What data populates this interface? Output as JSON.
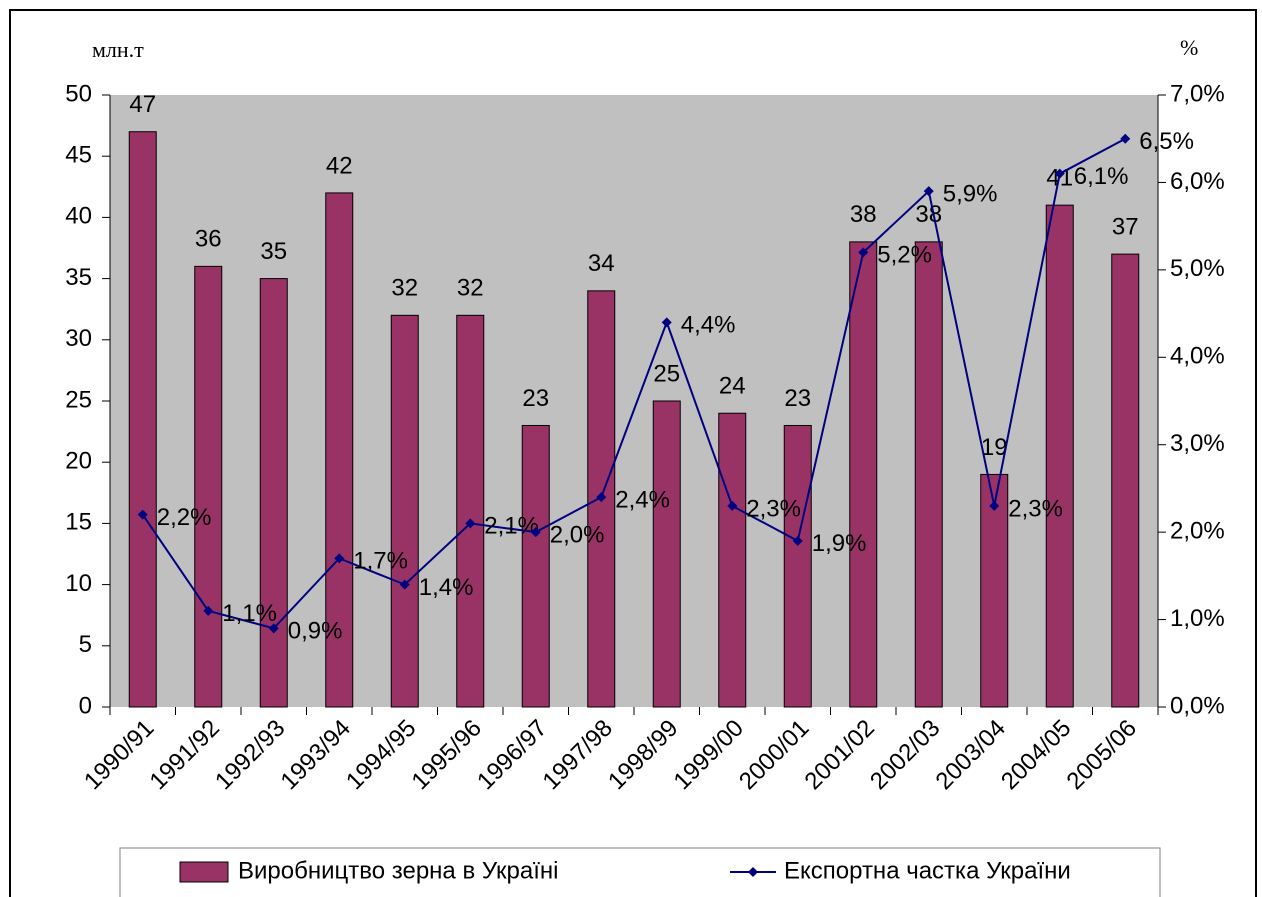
{
  "chart_data": {
    "type": "combo",
    "y_label": "млн.т",
    "y2_label": "%",
    "categories": [
      "1990/91",
      "1991/92",
      "1992/93",
      "1993/94",
      "1994/95",
      "1995/96",
      "1996/97",
      "1997/98",
      "1998/99",
      "1999/00",
      "2000/01",
      "2001/02",
      "2002/03",
      "2003/04",
      "2004/05",
      "2005/06"
    ],
    "series": [
      {
        "name": "Виробництво зерна в Україні",
        "type": "bar",
        "color": "#993366",
        "values": [
          47,
          36,
          35,
          42,
          32,
          32,
          23,
          34,
          25,
          24,
          23,
          38,
          38,
          19,
          41,
          37
        ]
      },
      {
        "name": "Експортна частка України",
        "type": "line",
        "color": "#000080",
        "axis": "y2",
        "values": [
          2.2,
          1.1,
          0.9,
          1.7,
          1.4,
          2.1,
          2.0,
          2.4,
          4.4,
          2.3,
          1.9,
          5.2,
          5.9,
          2.3,
          6.1,
          6.5
        ],
        "value_labels": [
          "2,2%",
          "1,1%",
          "0,9%",
          "1,7%",
          "1,4%",
          "2,1%",
          "2,0%",
          "2,4%",
          "4,4%",
          "2,3%",
          "1,9%",
          "5,2%",
          "5,9%",
          "2,3%",
          "6,1%",
          "6,5%"
        ]
      }
    ],
    "ylim": [
      0,
      50
    ],
    "yticks": [
      0,
      5,
      10,
      15,
      20,
      25,
      30,
      35,
      40,
      45,
      50
    ],
    "y2lim": [
      0,
      7
    ],
    "y2ticks": [
      {
        "value": 0,
        "label": "0,0%"
      },
      {
        "value": 1,
        "label": "1,0%"
      },
      {
        "value": 2,
        "label": "2,0%"
      },
      {
        "value": 3,
        "label": "3,0%"
      },
      {
        "value": 4,
        "label": "4,0%"
      },
      {
        "value": 5,
        "label": "5,0%"
      },
      {
        "value": 6,
        "label": "6,0%"
      },
      {
        "value": 7,
        "label": "7,0%"
      }
    ],
    "plot_background": "#c0c0c0"
  }
}
